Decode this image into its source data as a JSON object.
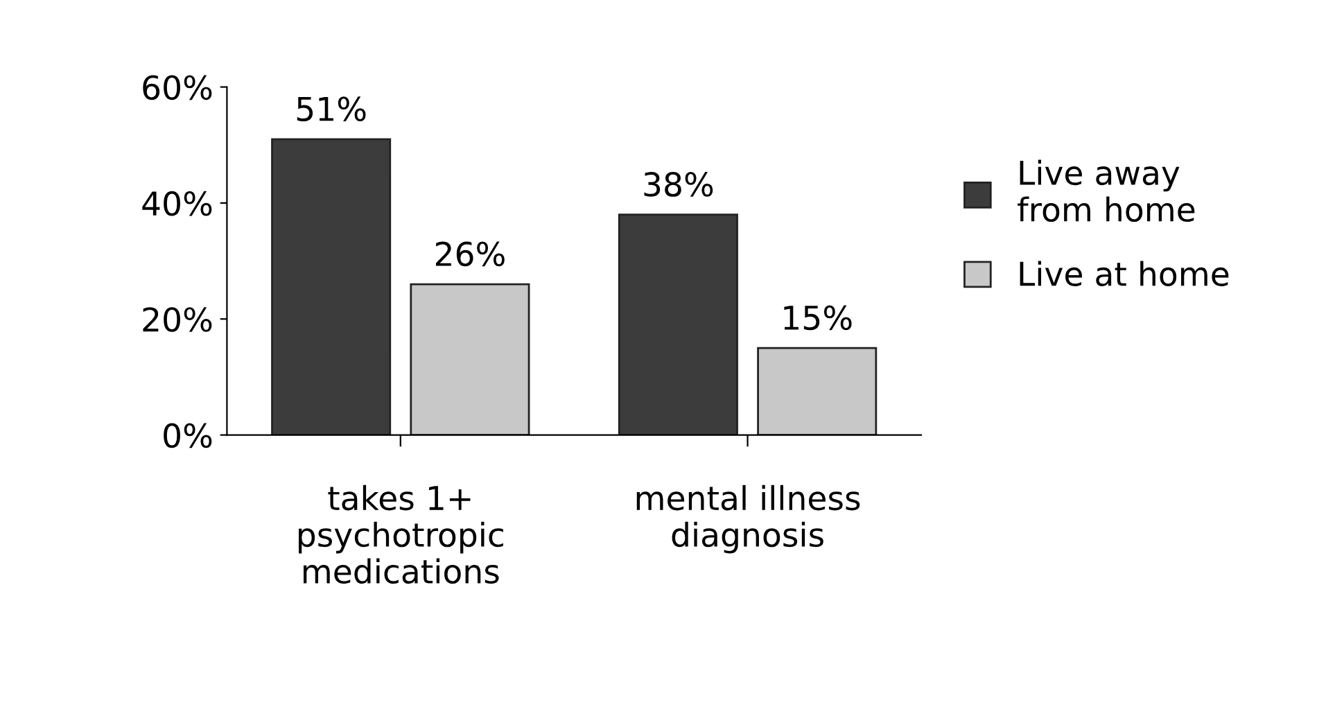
{
  "chart_data": {
    "type": "bar",
    "categories": [
      "takes 1+\npsychotropic\nmedications",
      "mental illness\ndiagnosis"
    ],
    "series": [
      {
        "name": "Live away\nfrom home",
        "color": "#3c3c3c",
        "values": [
          51,
          38
        ],
        "value_labels": [
          "51%",
          "38%"
        ]
      },
      {
        "name": "Live at home",
        "color": "#c8c8c8",
        "values": [
          26,
          15
        ],
        "value_labels": [
          "26%",
          "15%"
        ]
      }
    ],
    "ylim": [
      0,
      60
    ],
    "yticks": [
      {
        "value": 0,
        "label": "0%"
      },
      {
        "value": 20,
        "label": "20%"
      },
      {
        "value": 40,
        "label": "40%"
      },
      {
        "value": 60,
        "label": "60%"
      }
    ],
    "legend": "right",
    "grid": false
  }
}
